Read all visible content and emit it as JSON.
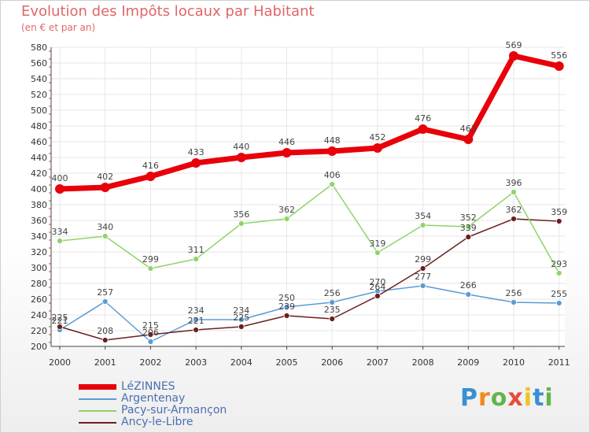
{
  "title": "Evolution des Impôts locaux par Habitant",
  "subtitle": "(en € et par an)",
  "logo": {
    "text": "Proxiti",
    "letter_colors": [
      "#3a8fd1",
      "#f08a1c",
      "#62b54a",
      "#e84a3a",
      "#f0c21c",
      "#3a8fd1",
      "#62b54a"
    ]
  },
  "chart_data": {
    "type": "line",
    "x": [
      2000,
      2001,
      2002,
      2003,
      2004,
      2005,
      2006,
      2007,
      2008,
      2009,
      2010,
      2011
    ],
    "ylim": [
      200,
      580
    ],
    "yticks": [
      200,
      220,
      240,
      260,
      280,
      300,
      320,
      340,
      360,
      380,
      400,
      420,
      440,
      460,
      480,
      500,
      520,
      540,
      560,
      580
    ],
    "grid": true,
    "legend_position": "bottom-left",
    "series": [
      {
        "name": "LéZINNES",
        "color": "#e8000a",
        "values": [
          400,
          402,
          416,
          433,
          440,
          446,
          448,
          452,
          476,
          463,
          569,
          556
        ]
      },
      {
        "name": "Argentenay",
        "color": "#5b9bd5",
        "values": [
          221,
          257,
          206,
          234,
          234,
          250,
          256,
          270,
          277,
          266,
          256,
          255
        ]
      },
      {
        "name": "Pacy-sur-Armançon",
        "color": "#8fd468",
        "values": [
          334,
          340,
          299,
          311,
          356,
          362,
          406,
          319,
          354,
          352,
          396,
          293
        ]
      },
      {
        "name": "Ancy-le-Libre",
        "color": "#6b1f1f",
        "values": [
          225,
          208,
          215,
          221,
          225,
          239,
          235,
          264,
          299,
          339,
          362,
          359
        ]
      }
    ]
  }
}
